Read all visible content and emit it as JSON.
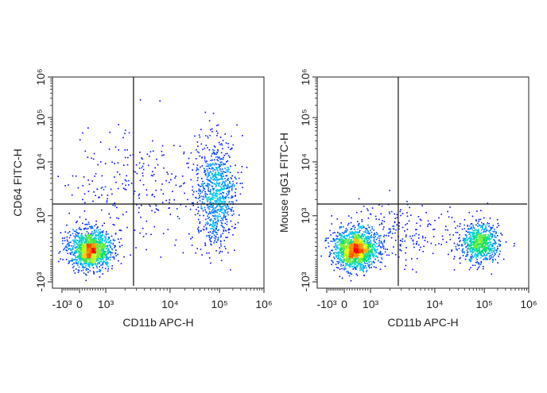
{
  "chart_data": [
    {
      "type": "scatter",
      "subtype": "flow-cytometry-density-dot-plot",
      "xlabel": "CD11b APC-H",
      "ylabel": "CD64 FITC-H",
      "x_scale": "biexponential",
      "y_scale": "biexponential",
      "xlim": [
        -1500,
        1000000
      ],
      "ylim": [
        -1500,
        1000000
      ],
      "x_ticks": [
        {
          "value": -1000,
          "label": "-10³"
        },
        {
          "value": 0,
          "label": "0"
        },
        {
          "value": 1000,
          "label": "10³"
        },
        {
          "value": 10000,
          "label": "10⁴"
        },
        {
          "value": 100000,
          "label": "10⁵"
        },
        {
          "value": 1000000,
          "label": "10⁶"
        }
      ],
      "y_ticks": [
        {
          "value": -1000,
          "label": "-10³"
        },
        {
          "value": 1000,
          "label": "10³"
        },
        {
          "value": 10000,
          "label": "10⁴"
        },
        {
          "value": 100000,
          "label": "10⁵"
        },
        {
          "value": 1000000,
          "label": "10⁶"
        }
      ],
      "quadrant_gate": {
        "x": 2700,
        "y": 1650
      },
      "populations": [
        {
          "x_center": 400,
          "y_center": 250,
          "relative_events": 0.55
        },
        {
          "x_center": 80000,
          "y_center": 2500,
          "relative_events": 0.35
        },
        {
          "x_center": 3000,
          "y_center": 3000,
          "relative_events": 0.1
        }
      ],
      "color_scale": [
        "#0000ff",
        "#00c8ff",
        "#00e060",
        "#ffff00",
        "#ff0000"
      ]
    },
    {
      "type": "scatter",
      "subtype": "flow-cytometry-density-dot-plot",
      "xlabel": "CD11b APC-H",
      "ylabel": "Mouse IgG1 FITC-H",
      "x_scale": "biexponential",
      "y_scale": "biexponential",
      "xlim": [
        -1500,
        1000000
      ],
      "ylim": [
        -1500,
        1000000
      ],
      "x_ticks": [
        {
          "value": -1000,
          "label": "-10³"
        },
        {
          "value": 0,
          "label": "0"
        },
        {
          "value": 1000,
          "label": "10³"
        },
        {
          "value": 10000,
          "label": "10⁴"
        },
        {
          "value": 100000,
          "label": "10⁵"
        },
        {
          "value": 1000000,
          "label": "10⁶"
        }
      ],
      "y_ticks": [
        {
          "value": -1000,
          "label": "-10³"
        },
        {
          "value": 1000,
          "label": "10³"
        },
        {
          "value": 10000,
          "label": "10⁴"
        },
        {
          "value": 100000,
          "label": "10⁵"
        },
        {
          "value": 1000000,
          "label": "10⁶"
        }
      ],
      "quadrant_gate": {
        "x": 2700,
        "y": 1650
      },
      "populations": [
        {
          "x_center": 400,
          "y_center": 250,
          "relative_events": 0.6
        },
        {
          "x_center": 80000,
          "y_center": 400,
          "relative_events": 0.3
        },
        {
          "x_center": 3000,
          "y_center": 600,
          "relative_events": 0.1
        }
      ],
      "color_scale": [
        "#0000ff",
        "#00c8ff",
        "#00e060",
        "#ffff00",
        "#ff0000"
      ]
    }
  ]
}
